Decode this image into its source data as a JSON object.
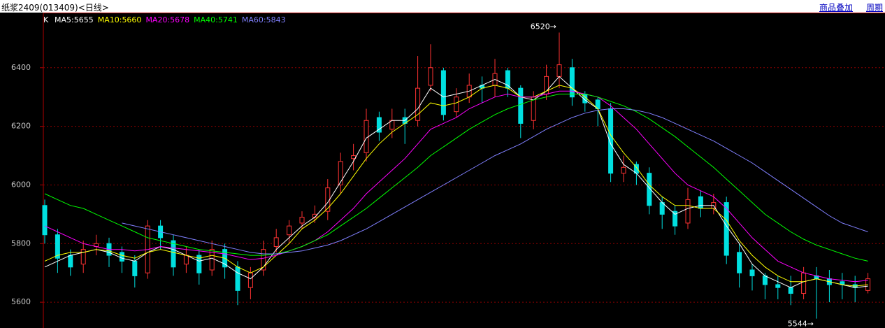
{
  "chart_data": {
    "type": "candlestick",
    "title": "纸浆2409(013409)<日线>",
    "links": [
      "商品叠加",
      "周期"
    ],
    "legend_prefix": "K",
    "ylim": [
      5512,
      6588
    ],
    "yticks": [
      5600,
      5800,
      6000,
      6200,
      6400
    ],
    "grid": true,
    "up_color": "#ff3232",
    "down_color": "#00e0e0",
    "open": [
      5930,
      5830,
      5760,
      5730,
      5790,
      5800,
      5770,
      5740,
      5700,
      5860,
      5810,
      5730,
      5760,
      5710,
      5780,
      5720,
      5650,
      5710,
      5790,
      5830,
      5870,
      5890,
      5910,
      6000,
      6090,
      6110,
      6230,
      6190,
      6230,
      6220,
      6340,
      6390,
      6250,
      6300,
      6340,
      6340,
      6390,
      6330,
      6220,
      6310,
      6370,
      6400,
      6310,
      6290,
      6260,
      6040,
      6070,
      6040,
      5940,
      5910,
      5870,
      5960,
      5920,
      5940,
      5770,
      5710,
      5690,
      5660,
      5650,
      5630,
      5690,
      5680,
      5670,
      5660,
      5640
    ],
    "high": [
      5950,
      5850,
      5780,
      5810,
      5830,
      5820,
      5790,
      5760,
      5880,
      5880,
      5830,
      5790,
      5780,
      5810,
      5800,
      5740,
      5720,
      5810,
      5850,
      5880,
      5910,
      5930,
      6020,
      6110,
      6140,
      6260,
      6250,
      6260,
      6260,
      6440,
      6480,
      6400,
      6330,
      6380,
      6370,
      6430,
      6400,
      6340,
      6320,
      6410,
      6520,
      6430,
      6320,
      6300,
      6280,
      6100,
      6080,
      6060,
      5960,
      5930,
      5990,
      5980,
      5970,
      5960,
      5800,
      5730,
      5700,
      5690,
      5690,
      5720,
      5720,
      5710,
      5700,
      5690,
      5700
    ],
    "low": [
      5800,
      5700,
      5690,
      5700,
      5760,
      5720,
      5700,
      5650,
      5680,
      5780,
      5690,
      5700,
      5660,
      5690,
      5680,
      5590,
      5610,
      5690,
      5770,
      5800,
      5850,
      5870,
      5880,
      5970,
      6050,
      6080,
      6150,
      6160,
      6140,
      6200,
      6320,
      6220,
      6230,
      6280,
      6280,
      6300,
      6300,
      6160,
      6190,
      6290,
      6330,
      6270,
      6250,
      6200,
      6010,
      6010,
      6000,
      5900,
      5850,
      5830,
      5850,
      5890,
      5900,
      5730,
      5650,
      5640,
      5610,
      5610,
      5590,
      5610,
      5544,
      5600,
      5610,
      5600,
      5630
    ],
    "close": [
      5830,
      5750,
      5720,
      5780,
      5800,
      5760,
      5740,
      5690,
      5860,
      5820,
      5720,
      5760,
      5700,
      5780,
      5720,
      5640,
      5700,
      5780,
      5820,
      5860,
      5890,
      5900,
      5990,
      6080,
      6100,
      6220,
      6180,
      6220,
      6210,
      6330,
      6400,
      6240,
      6300,
      6340,
      6330,
      6380,
      6330,
      6210,
      6300,
      6370,
      6410,
      6300,
      6280,
      6260,
      6040,
      6060,
      6040,
      5930,
      5900,
      5860,
      5950,
      5920,
      5940,
      5760,
      5700,
      5690,
      5660,
      5650,
      5630,
      5700,
      5680,
      5660,
      5660,
      5650,
      5680
    ],
    "annotations": [
      {
        "index": 40,
        "label": "6520→"
      },
      {
        "index": 60,
        "label": "5544→"
      }
    ],
    "series": [
      {
        "name": "MA5:5655",
        "color": "#ffffff",
        "values": [
          5720,
          5740,
          5760,
          5770,
          5780,
          5770,
          5750,
          5740,
          5770,
          5790,
          5780,
          5760,
          5740,
          5750,
          5730,
          5700,
          5680,
          5720,
          5780,
          5820,
          5860,
          5890,
          5940,
          6010,
          6080,
          6160,
          6190,
          6220,
          6220,
          6260,
          6330,
          6300,
          6310,
          6320,
          6340,
          6360,
          6340,
          6300,
          6290,
          6320,
          6370,
          6330,
          6290,
          6260,
          6140,
          6070,
          6040,
          5990,
          5940,
          5900,
          5920,
          5930,
          5930,
          5860,
          5800,
          5730,
          5690,
          5670,
          5650,
          5670,
          5680,
          5670,
          5660,
          5650,
          5655
        ]
      },
      {
        "name": "MA10:5660",
        "color": "#ffff00",
        "values": [
          5740,
          5760,
          5770,
          5770,
          5780,
          5775,
          5760,
          5750,
          5770,
          5780,
          5770,
          5760,
          5750,
          5760,
          5750,
          5720,
          5700,
          5720,
          5760,
          5800,
          5850,
          5880,
          5920,
          5970,
          6030,
          6090,
          6140,
          6180,
          6210,
          6240,
          6280,
          6270,
          6280,
          6300,
          6330,
          6340,
          6330,
          6300,
          6300,
          6320,
          6340,
          6330,
          6300,
          6260,
          6170,
          6110,
          6060,
          6000,
          5960,
          5930,
          5930,
          5920,
          5920,
          5880,
          5810,
          5760,
          5720,
          5690,
          5670,
          5670,
          5680,
          5670,
          5660,
          5655,
          5660
        ]
      },
      {
        "name": "MA20:5678",
        "color": "#ff00ff",
        "values": [
          5860,
          5840,
          5820,
          5800,
          5790,
          5780,
          5780,
          5775,
          5780,
          5790,
          5785,
          5780,
          5775,
          5770,
          5765,
          5755,
          5745,
          5750,
          5760,
          5775,
          5790,
          5810,
          5840,
          5880,
          5920,
          5970,
          6010,
          6050,
          6090,
          6140,
          6190,
          6210,
          6230,
          6260,
          6280,
          6300,
          6310,
          6300,
          6300,
          6310,
          6320,
          6320,
          6310,
          6300,
          6270,
          6230,
          6190,
          6140,
          6090,
          6040,
          6000,
          5980,
          5960,
          5920,
          5870,
          5820,
          5780,
          5740,
          5720,
          5700,
          5690,
          5680,
          5675,
          5670,
          5675
        ]
      },
      {
        "name": "MA40:5741",
        "color": "#00ff00",
        "values": [
          5970,
          5950,
          5930,
          5920,
          5900,
          5880,
          5860,
          5840,
          5820,
          5810,
          5800,
          5790,
          5780,
          5775,
          5770,
          5765,
          5760,
          5760,
          5765,
          5775,
          5790,
          5810,
          5830,
          5860,
          5890,
          5920,
          5955,
          5990,
          6025,
          6060,
          6100,
          6130,
          6160,
          6190,
          6215,
          6240,
          6260,
          6275,
          6290,
          6300,
          6310,
          6310,
          6310,
          6300,
          6285,
          6270,
          6250,
          6225,
          6195,
          6165,
          6130,
          6095,
          6060,
          6020,
          5980,
          5940,
          5900,
          5870,
          5840,
          5815,
          5795,
          5780,
          5765,
          5750,
          5740
        ]
      },
      {
        "name": "MA60:5843",
        "color": "#8080ff",
        "values": [
          null,
          null,
          null,
          null,
          null,
          null,
          5870,
          5860,
          5850,
          5840,
          5830,
          5820,
          5810,
          5800,
          5790,
          5780,
          5770,
          5765,
          5765,
          5770,
          5775,
          5785,
          5795,
          5810,
          5830,
          5850,
          5875,
          5900,
          5925,
          5950,
          5975,
          6000,
          6025,
          6050,
          6075,
          6100,
          6120,
          6140,
          6165,
          6190,
          6210,
          6230,
          6245,
          6255,
          6260,
          6260,
          6255,
          6245,
          6230,
          6210,
          6190,
          6170,
          6150,
          6125,
          6100,
          6075,
          6045,
          6015,
          5985,
          5955,
          5925,
          5895,
          5870,
          5855,
          5840
        ]
      }
    ]
  }
}
